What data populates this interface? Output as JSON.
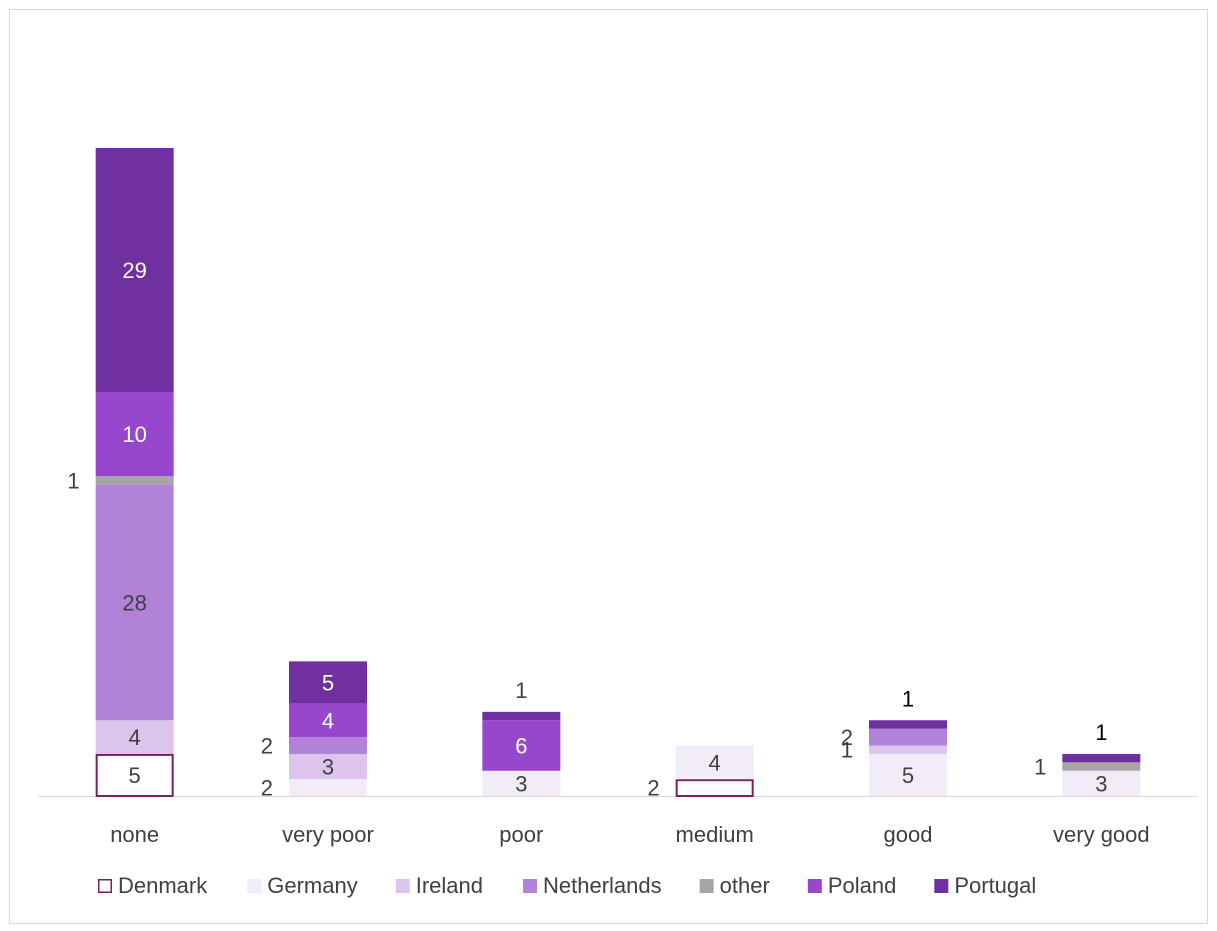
{
  "chart_data": {
    "type": "bar",
    "stacked": true,
    "categories": [
      "none",
      "very poor",
      "poor",
      "medium",
      "good",
      "very good"
    ],
    "series": [
      {
        "name": "Denmark",
        "values": [
          5,
          0,
          0,
          2,
          0,
          0
        ],
        "color": "#ffffff",
        "stroke": "#7b1f5f"
      },
      {
        "name": "Germany",
        "values": [
          0,
          2,
          3,
          4,
          5,
          3
        ],
        "color": "#f2ebf8"
      },
      {
        "name": "Ireland",
        "values": [
          4,
          3,
          0,
          0,
          1,
          0
        ],
        "color": "#dcc4ec"
      },
      {
        "name": "Netherlands",
        "values": [
          28,
          2,
          0,
          0,
          2,
          0
        ],
        "color": "#b083d9"
      },
      {
        "name": "other",
        "values": [
          1,
          0,
          0,
          0,
          0,
          1
        ],
        "color": "#a6a6a6"
      },
      {
        "name": "Poland",
        "values": [
          10,
          4,
          6,
          0,
          0,
          0
        ],
        "color": "#9747cc"
      },
      {
        "name": "Portugal",
        "values": [
          29,
          5,
          1,
          0,
          1,
          1
        ],
        "color": "#7030a0"
      }
    ],
    "ylim": [
      0,
      77
    ],
    "grid": false,
    "legend": "bottom",
    "title": "",
    "xlabel": "",
    "ylabel": ""
  }
}
